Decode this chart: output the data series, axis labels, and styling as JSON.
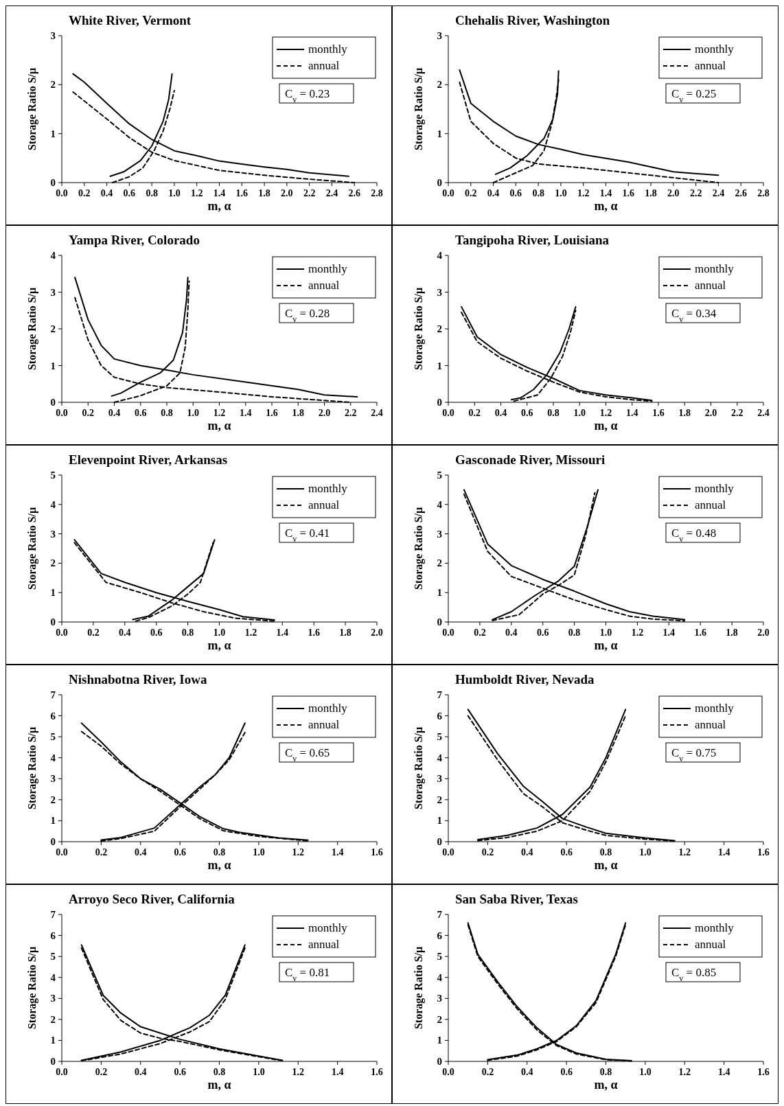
{
  "chart_data": [
    {
      "type": "line",
      "title": "White River, Vermont",
      "xlabel": "m, α",
      "ylabel": "Storage Ratio S/μ",
      "legend": "top right",
      "annotations": [
        "C$_{v}$ = 0.23"
      ],
      "xlim": [
        0,
        2.8
      ],
      "ylim": [
        0,
        3
      ],
      "xticks": [
        {
          "value": 0,
          "label": "0.0"
        },
        0.2,
        0.4,
        0.6,
        0.8,
        {
          "value": 1,
          "label": "1.0"
        },
        1.2,
        1.4,
        1.6,
        1.8,
        {
          "value": 2,
          "label": "2.0"
        },
        2.2,
        2.4,
        2.6,
        2.8
      ],
      "yticks": [
        0,
        1,
        2,
        3
      ],
      "series": [
        {
          "name": "monthly",
          "color": "#000000",
          "line_style": "solid",
          "x": [
            0.1,
            0.2,
            0.4,
            0.6,
            0.8,
            1.0,
            1.2,
            1.4,
            1.6,
            1.8,
            2.0,
            2.2,
            2.55
          ],
          "values": [
            2.22,
            2.05,
            1.62,
            1.2,
            0.88,
            0.65,
            0.55,
            0.44,
            0.38,
            0.32,
            0.27,
            0.2,
            0.13
          ]
        },
        {
          "name": "annual",
          "color": "#000000",
          "line_style": "dashed",
          "x": [
            0.1,
            0.4,
            0.6,
            0.8,
            1.0,
            1.4,
            1.8,
            2.2,
            2.6
          ],
          "values": [
            1.85,
            1.3,
            0.92,
            0.62,
            0.45,
            0.25,
            0.15,
            0.07,
            0.0
          ]
        },
        {
          "color": "#000000",
          "line_style": "solid",
          "x": [
            0.43,
            0.55,
            0.7,
            0.8,
            0.9,
            0.95,
            0.98
          ],
          "values": [
            0.13,
            0.22,
            0.45,
            0.75,
            1.25,
            1.7,
            2.22
          ]
        },
        {
          "color": "#000000",
          "line_style": "dashed",
          "x": [
            0.45,
            0.6,
            0.72,
            0.82,
            0.9,
            0.96,
            1.0
          ],
          "values": [
            0.0,
            0.12,
            0.3,
            0.65,
            1.05,
            1.5,
            1.88
          ]
        }
      ]
    },
    {
      "type": "line",
      "title": "Chehalis River, Washington",
      "xlabel": "m, α",
      "ylabel": "Storage Ratio S/μ",
      "legend": "top right",
      "annotations": [
        "C$_{v}$ = 0.25"
      ],
      "xlim": [
        0,
        2.8
      ],
      "ylim": [
        0,
        3
      ],
      "xticks": [
        {
          "value": 0,
          "label": "0.0"
        },
        0.2,
        0.4,
        0.6,
        0.8,
        {
          "value": 1,
          "label": "1.0"
        },
        1.2,
        1.4,
        1.6,
        1.8,
        {
          "value": 2,
          "label": "2.0"
        },
        2.2,
        2.4,
        2.6,
        2.8
      ],
      "yticks": [
        0,
        1,
        2,
        3
      ],
      "series": [
        {
          "name": "monthly",
          "color": "#000000",
          "line_style": "solid",
          "x": [
            0.1,
            0.2,
            0.4,
            0.6,
            0.8,
            1.0,
            1.2,
            1.6,
            2.0,
            2.4
          ],
          "values": [
            2.3,
            1.62,
            1.25,
            0.95,
            0.78,
            0.68,
            0.57,
            0.42,
            0.22,
            0.15
          ]
        },
        {
          "name": "annual",
          "color": "#000000",
          "line_style": "dashed",
          "x": [
            0.1,
            0.2,
            0.4,
            0.6,
            0.8,
            1.2,
            1.6,
            2.0,
            2.4
          ],
          "values": [
            2.05,
            1.25,
            0.8,
            0.5,
            0.38,
            0.3,
            0.2,
            0.1,
            0.0
          ]
        },
        {
          "color": "#000000",
          "line_style": "solid",
          "x": [
            0.42,
            0.55,
            0.7,
            0.85,
            0.93,
            0.97,
            0.98
          ],
          "values": [
            0.17,
            0.3,
            0.55,
            0.9,
            1.3,
            1.8,
            2.28
          ]
        },
        {
          "color": "#000000",
          "line_style": "dashed",
          "x": [
            0.4,
            0.6,
            0.75,
            0.85,
            0.92,
            0.96,
            0.98
          ],
          "values": [
            0.0,
            0.2,
            0.35,
            0.65,
            1.2,
            1.75,
            2.1
          ]
        }
      ]
    },
    {
      "type": "line",
      "title": "Yampa River, Colorado",
      "xlabel": "m, α",
      "ylabel": "Storage Ratio S/μ",
      "legend": "top right",
      "annotations": [
        "C$_{v}$ = 0.28"
      ],
      "xlim": [
        0,
        2.4
      ],
      "ylim": [
        0,
        4
      ],
      "xticks": [
        {
          "value": 0,
          "label": "0.0"
        },
        0.2,
        0.4,
        0.6,
        0.8,
        {
          "value": 1,
          "label": "1.0"
        },
        1.2,
        1.4,
        1.6,
        1.8,
        {
          "value": 2,
          "label": "2.0"
        },
        2.2,
        2.4
      ],
      "yticks": [
        0,
        1,
        2,
        3,
        4
      ],
      "series": [
        {
          "name": "monthly",
          "color": "#000000",
          "line_style": "solid",
          "x": [
            0.1,
            0.2,
            0.3,
            0.4,
            0.6,
            0.8,
            1.0,
            1.4,
            1.8,
            2.0,
            2.25
          ],
          "values": [
            3.4,
            2.25,
            1.55,
            1.18,
            1.0,
            0.88,
            0.75,
            0.55,
            0.35,
            0.2,
            0.15
          ]
        },
        {
          "name": "annual",
          "color": "#000000",
          "line_style": "dashed",
          "x": [
            0.1,
            0.2,
            0.3,
            0.4,
            0.6,
            0.8,
            1.2,
            1.6,
            2.0,
            2.2
          ],
          "values": [
            2.85,
            1.7,
            1.0,
            0.68,
            0.5,
            0.4,
            0.28,
            0.15,
            0.05,
            0.0
          ]
        },
        {
          "color": "#000000",
          "line_style": "solid",
          "x": [
            0.38,
            0.45,
            0.6,
            0.75,
            0.85,
            0.92,
            0.95,
            0.96
          ],
          "values": [
            0.17,
            0.25,
            0.55,
            0.8,
            1.15,
            1.9,
            2.8,
            3.4
          ]
        },
        {
          "color": "#000000",
          "line_style": "dashed",
          "x": [
            0.4,
            0.6,
            0.8,
            0.9,
            0.94,
            0.96,
            0.97
          ],
          "values": [
            0.0,
            0.18,
            0.45,
            0.8,
            1.5,
            2.5,
            3.3
          ]
        }
      ]
    },
    {
      "type": "line",
      "title": "Tangipoha River, Louisiana",
      "xlabel": "m, α",
      "ylabel": "Storage Ratio S/μ",
      "legend": "top right",
      "annotations": [
        "C$_{v}$ = 0.34"
      ],
      "xlim": [
        0,
        2.4
      ],
      "ylim": [
        0,
        4
      ],
      "xticks": [
        {
          "value": 0,
          "label": "0.0"
        },
        0.2,
        0.4,
        0.6,
        0.8,
        {
          "value": 1,
          "label": "1.0"
        },
        1.2,
        1.4,
        1.6,
        1.8,
        {
          "value": 2,
          "label": "2.0"
        },
        2.2,
        2.4
      ],
      "yticks": [
        0,
        1,
        2,
        3,
        4
      ],
      "series": [
        {
          "name": "monthly",
          "color": "#000000",
          "line_style": "solid",
          "x": [
            0.1,
            0.22,
            0.4,
            0.6,
            0.8,
            1.0,
            1.2,
            1.4,
            1.55
          ],
          "values": [
            2.6,
            1.78,
            1.3,
            0.95,
            0.65,
            0.32,
            0.2,
            0.12,
            0.05
          ]
        },
        {
          "name": "annual",
          "color": "#000000",
          "line_style": "dashed",
          "x": [
            0.1,
            0.22,
            0.4,
            0.6,
            0.8,
            1.0,
            1.2,
            1.4,
            1.55
          ],
          "values": [
            2.45,
            1.65,
            1.2,
            0.85,
            0.55,
            0.28,
            0.15,
            0.07,
            0.03
          ]
        },
        {
          "color": "#000000",
          "line_style": "solid",
          "x": [
            0.48,
            0.55,
            0.65,
            0.75,
            0.85,
            0.92,
            0.97
          ],
          "values": [
            0.07,
            0.12,
            0.35,
            0.75,
            1.35,
            2.0,
            2.6
          ]
        },
        {
          "color": "#000000",
          "line_style": "dashed",
          "x": [
            0.5,
            0.68,
            0.78,
            0.87,
            0.93,
            0.97
          ],
          "values": [
            0.03,
            0.2,
            0.65,
            1.25,
            1.9,
            2.5
          ]
        }
      ]
    },
    {
      "type": "line",
      "title": "Elevenpoint River, Arkansas",
      "xlabel": "m, α",
      "ylabel": "Storage Ratio S/μ",
      "legend": "top right",
      "annotations": [
        "C$_{v}$ = 0.41"
      ],
      "xlim": [
        0,
        2
      ],
      "ylim": [
        0,
        5
      ],
      "xticks": [
        {
          "value": 0,
          "label": "0.0"
        },
        0.2,
        0.4,
        0.6,
        0.8,
        {
          "value": 1,
          "label": "1.0"
        },
        1.2,
        1.4,
        1.6,
        1.8,
        {
          "value": 2,
          "label": "2.0"
        }
      ],
      "yticks": [
        0,
        1,
        2,
        3,
        4,
        5
      ],
      "series": [
        {
          "name": "monthly",
          "color": "#000000",
          "line_style": "solid",
          "x": [
            0.08,
            0.25,
            0.4,
            0.6,
            0.8,
            1.0,
            1.15,
            1.35
          ],
          "values": [
            2.8,
            1.65,
            1.35,
            1.0,
            0.7,
            0.42,
            0.18,
            0.07
          ]
        },
        {
          "name": "annual",
          "color": "#000000",
          "line_style": "dashed",
          "x": [
            0.08,
            0.28,
            0.5,
            0.7,
            0.9,
            1.1,
            1.35
          ],
          "values": [
            2.7,
            1.35,
            1.0,
            0.65,
            0.35,
            0.13,
            0.03
          ]
        },
        {
          "color": "#000000",
          "line_style": "solid",
          "x": [
            0.45,
            0.55,
            0.7,
            0.8,
            0.9,
            0.97
          ],
          "values": [
            0.08,
            0.2,
            0.75,
            1.2,
            1.65,
            2.8
          ]
        },
        {
          "color": "#000000",
          "line_style": "dashed",
          "x": [
            0.47,
            0.55,
            0.7,
            0.8,
            0.88,
            0.96
          ],
          "values": [
            0.03,
            0.15,
            0.55,
            0.95,
            1.35,
            2.7
          ]
        }
      ]
    },
    {
      "type": "line",
      "title": "Gasconade River, Missouri",
      "xlabel": "m, α",
      "ylabel": "Storage Ratio S/μ",
      "legend": "top right",
      "annotations": [
        "C$_{v}$ = 0.48"
      ],
      "xlim": [
        0,
        2
      ],
      "ylim": [
        0,
        5
      ],
      "xticks": [
        {
          "value": 0,
          "label": "0.0"
        },
        0.2,
        0.4,
        0.6,
        0.8,
        {
          "value": 1,
          "label": "1.0"
        },
        1.2,
        1.4,
        1.6,
        1.8,
        {
          "value": 2,
          "label": "2.0"
        }
      ],
      "yticks": [
        0,
        1,
        2,
        3,
        4,
        5
      ],
      "series": [
        {
          "name": "monthly",
          "color": "#000000",
          "line_style": "solid",
          "x": [
            0.1,
            0.25,
            0.4,
            0.6,
            0.8,
            1.0,
            1.15,
            1.3,
            1.5
          ],
          "values": [
            4.5,
            2.65,
            1.92,
            1.45,
            1.05,
            0.62,
            0.35,
            0.2,
            0.08
          ]
        },
        {
          "name": "annual",
          "color": "#000000",
          "line_style": "dashed",
          "x": [
            0.1,
            0.25,
            0.4,
            0.6,
            0.8,
            1.0,
            1.15,
            1.3,
            1.5
          ],
          "values": [
            4.35,
            2.4,
            1.55,
            1.15,
            0.75,
            0.42,
            0.2,
            0.1,
            0.04
          ]
        },
        {
          "color": "#000000",
          "line_style": "solid",
          "x": [
            0.28,
            0.4,
            0.55,
            0.7,
            0.8,
            0.88,
            0.95
          ],
          "values": [
            0.08,
            0.35,
            0.9,
            1.4,
            1.9,
            3.2,
            4.5
          ]
        },
        {
          "color": "#000000",
          "line_style": "dashed",
          "x": [
            0.28,
            0.45,
            0.6,
            0.7,
            0.8,
            0.87,
            0.93
          ],
          "values": [
            0.05,
            0.25,
            0.95,
            1.25,
            1.6,
            2.9,
            4.4
          ]
        }
      ]
    },
    {
      "type": "line",
      "title": "Nishnabotna River, Iowa",
      "xlabel": "m, α",
      "ylabel": "Storage Ratio S/μ",
      "legend": "top right",
      "annotations": [
        "C$_{v}$ = 0.65"
      ],
      "xlim": [
        0,
        1.6
      ],
      "ylim": [
        0,
        7
      ],
      "xticks": [
        {
          "value": 0,
          "label": "0.0"
        },
        0.2,
        0.4,
        0.6,
        0.8,
        {
          "value": 1,
          "label": "1.0"
        },
        1.2,
        1.4,
        1.6
      ],
      "yticks": [
        0,
        1,
        2,
        3,
        4,
        5,
        6,
        7
      ],
      "series": [
        {
          "name": "monthly",
          "color": "#000000",
          "line_style": "solid",
          "x": [
            0.1,
            0.2,
            0.3,
            0.4,
            0.5,
            0.6,
            0.7,
            0.82,
            0.9,
            1.1,
            1.25
          ],
          "values": [
            5.65,
            4.75,
            3.8,
            3.0,
            2.5,
            1.85,
            1.2,
            0.62,
            0.45,
            0.18,
            0.07
          ]
        },
        {
          "name": "annual",
          "color": "#000000",
          "line_style": "dashed",
          "x": [
            0.1,
            0.2,
            0.3,
            0.4,
            0.5,
            0.6,
            0.7,
            0.82,
            1.0,
            1.25
          ],
          "values": [
            5.25,
            4.55,
            3.7,
            3.0,
            2.4,
            1.75,
            1.1,
            0.52,
            0.25,
            0.04
          ]
        },
        {
          "color": "#000000",
          "line_style": "solid",
          "x": [
            0.2,
            0.3,
            0.47,
            0.6,
            0.7,
            0.78,
            0.85,
            0.93
          ],
          "values": [
            0.08,
            0.2,
            0.65,
            1.75,
            2.6,
            3.2,
            4.0,
            5.65
          ]
        },
        {
          "color": "#000000",
          "line_style": "dashed",
          "x": [
            0.2,
            0.3,
            0.47,
            0.6,
            0.7,
            0.78,
            0.85,
            0.93
          ],
          "values": [
            0.03,
            0.15,
            0.5,
            1.65,
            2.5,
            3.2,
            3.9,
            5.2
          ]
        }
      ]
    },
    {
      "type": "line",
      "title": "Humboldt River, Nevada",
      "xlabel": "m, α",
      "ylabel": "Storage Ratio S/μ",
      "legend": "top right",
      "annotations": [
        "C$_{v}$ = 0.75"
      ],
      "xlim": [
        0,
        1.6
      ],
      "ylim": [
        0,
        7
      ],
      "xticks": [
        {
          "value": 0,
          "label": "0.0"
        },
        0.2,
        0.4,
        0.6,
        0.8,
        {
          "value": 1,
          "label": "1.0"
        },
        1.2,
        1.4,
        1.6
      ],
      "yticks": [
        0,
        1,
        2,
        3,
        4,
        5,
        6,
        7
      ],
      "series": [
        {
          "name": "monthly",
          "color": "#000000",
          "line_style": "solid",
          "x": [
            0.1,
            0.25,
            0.38,
            0.48,
            0.58,
            0.7,
            0.8,
            1.0,
            1.15
          ],
          "values": [
            6.3,
            4.2,
            2.65,
            1.9,
            1.1,
            0.7,
            0.4,
            0.18,
            0.05
          ]
        },
        {
          "name": "annual",
          "color": "#000000",
          "line_style": "dashed",
          "x": [
            0.1,
            0.25,
            0.38,
            0.48,
            0.58,
            0.7,
            0.8,
            1.0,
            1.15
          ],
          "values": [
            6.0,
            3.9,
            2.3,
            1.65,
            0.9,
            0.55,
            0.3,
            0.12,
            0.03
          ]
        },
        {
          "color": "#000000",
          "line_style": "solid",
          "x": [
            0.15,
            0.3,
            0.45,
            0.58,
            0.72,
            0.8,
            0.9
          ],
          "values": [
            0.1,
            0.3,
            0.65,
            1.3,
            2.6,
            4.0,
            6.3
          ]
        },
        {
          "color": "#000000",
          "line_style": "dashed",
          "x": [
            0.15,
            0.3,
            0.45,
            0.58,
            0.72,
            0.8,
            0.9
          ],
          "values": [
            0.05,
            0.2,
            0.5,
            1.0,
            2.4,
            3.8,
            6.0
          ]
        }
      ]
    },
    {
      "type": "line",
      "title": "Arroyo Seco River, California",
      "xlabel": "m, α",
      "ylabel": "Storage Ratio S/μ",
      "legend": "top right",
      "annotations": [
        "C$_{v}$ = 0.81"
      ],
      "xlim": [
        0,
        1.6
      ],
      "ylim": [
        0,
        7
      ],
      "xticks": [
        {
          "value": 0,
          "label": "0.0"
        },
        0.2,
        0.4,
        0.6,
        0.8,
        {
          "value": 1,
          "label": "1.0"
        },
        1.2,
        1.4,
        1.6
      ],
      "yticks": [
        0,
        1,
        2,
        3,
        4,
        5,
        6,
        7
      ],
      "series": [
        {
          "name": "monthly",
          "color": "#000000",
          "line_style": "solid",
          "x": [
            0.1,
            0.21,
            0.3,
            0.4,
            0.5,
            0.6,
            0.8,
            1.0,
            1.12
          ],
          "values": [
            5.55,
            3.15,
            2.3,
            1.65,
            1.35,
            1.05,
            0.6,
            0.25,
            0.05
          ]
        },
        {
          "name": "annual",
          "color": "#000000",
          "line_style": "dashed",
          "x": [
            0.1,
            0.21,
            0.3,
            0.4,
            0.5,
            0.6,
            0.8,
            1.0,
            1.12
          ],
          "values": [
            5.4,
            2.95,
            1.95,
            1.35,
            1.1,
            0.95,
            0.55,
            0.22,
            0.03
          ]
        },
        {
          "color": "#000000",
          "line_style": "solid",
          "x": [
            0.1,
            0.3,
            0.5,
            0.65,
            0.75,
            0.83,
            0.93
          ],
          "values": [
            0.05,
            0.45,
            1.0,
            1.6,
            2.2,
            3.15,
            5.55
          ]
        },
        {
          "color": "#000000",
          "line_style": "dashed",
          "x": [
            0.1,
            0.3,
            0.5,
            0.65,
            0.75,
            0.83,
            0.93
          ],
          "values": [
            0.03,
            0.35,
            0.85,
            1.4,
            1.9,
            2.95,
            5.4
          ]
        }
      ]
    },
    {
      "type": "line",
      "title": "San Saba River, Texas",
      "xlabel": "m, α",
      "ylabel": "Storage Ratio S/μ",
      "legend": "top right",
      "annotations": [
        "C$_{v}$ = 0.85"
      ],
      "xlim": [
        0,
        1.6
      ],
      "ylim": [
        0,
        7
      ],
      "xticks": [
        {
          "value": 0,
          "label": "0.0"
        },
        0.2,
        0.4,
        0.6,
        0.8,
        {
          "value": 1,
          "label": "1.0"
        },
        1.2,
        1.4,
        1.6
      ],
      "yticks": [
        0,
        1,
        2,
        3,
        4,
        5,
        6,
        7
      ],
      "series": [
        {
          "name": "monthly",
          "color": "#000000",
          "line_style": "solid",
          "x": [
            0.1,
            0.15,
            0.25,
            0.35,
            0.45,
            0.55,
            0.65,
            0.8,
            0.93
          ],
          "values": [
            6.6,
            5.1,
            3.8,
            2.6,
            1.6,
            0.8,
            0.4,
            0.1,
            0.03
          ]
        },
        {
          "name": "annual",
          "color": "#000000",
          "line_style": "dashed",
          "x": [
            0.1,
            0.15,
            0.25,
            0.35,
            0.45,
            0.55,
            0.65,
            0.8,
            0.93
          ],
          "values": [
            6.5,
            5.0,
            3.7,
            2.5,
            1.5,
            0.75,
            0.35,
            0.08,
            0.02
          ]
        },
        {
          "color": "#000000",
          "line_style": "solid",
          "x": [
            0.2,
            0.35,
            0.45,
            0.55,
            0.65,
            0.75,
            0.85,
            0.9
          ],
          "values": [
            0.08,
            0.3,
            0.6,
            1.0,
            1.7,
            2.9,
            5.1,
            6.6
          ]
        },
        {
          "color": "#000000",
          "line_style": "dashed",
          "x": [
            0.2,
            0.35,
            0.45,
            0.55,
            0.65,
            0.75,
            0.85,
            0.9
          ],
          "values": [
            0.05,
            0.25,
            0.55,
            0.95,
            1.65,
            2.8,
            5.0,
            6.5
          ]
        }
      ]
    }
  ]
}
